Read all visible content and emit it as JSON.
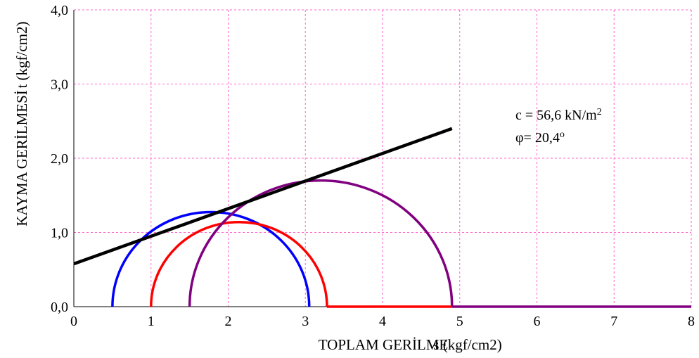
{
  "chart_data": {
    "type": "line",
    "xlabel": "TOPLAM GERİLME s (kgf/cm2)",
    "ylabel": "KAYMA GERİLMESİ t (kgf/cm2)",
    "xlim": [
      0,
      8
    ],
    "ylim": [
      0,
      4
    ],
    "x_ticks": [
      "0",
      "1",
      "2",
      "3",
      "4",
      "5",
      "6",
      "7",
      "8"
    ],
    "y_ticks": [
      "0,0",
      "1,0",
      "2,0",
      "3,0",
      "4,0"
    ],
    "grid": true,
    "grid_color": "#ff66cc",
    "legend": "none",
    "annotations": {
      "cohesion": "c = 56,6 kN/m",
      "cohesion_sup": "2",
      "friction": "φ= 20,4",
      "friction_sup": "o"
    },
    "circles": [
      {
        "sigma3": 0.5,
        "sigma1": 3.05,
        "color": "#0000ff"
      },
      {
        "sigma3": 1.0,
        "sigma1": 3.28,
        "color": "#ff0000"
      },
      {
        "sigma3": 1.5,
        "sigma1": 4.9,
        "color": "#800080"
      }
    ],
    "series": [
      {
        "x": [
          0,
          4.9
        ],
        "y": [
          0.577,
          2.4
        ],
        "color": "#000000"
      }
    ]
  }
}
